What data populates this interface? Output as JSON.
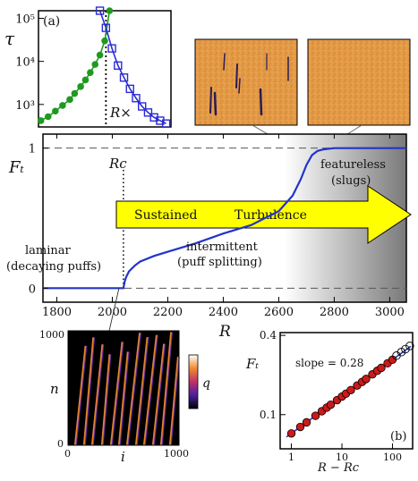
{
  "colors": {
    "green": "#1e9a1e",
    "blue": "#2b2bd6",
    "main_curve": "#2233cc",
    "arrow_fill": "#ffff00",
    "red_marker": "#cc1a1a",
    "open_marker": "#000000",
    "orange_bg": "#e39a45",
    "gray_region": "#7f7f7f"
  },
  "chart_data": [
    {
      "id": "a",
      "type": "scatter",
      "panel_label": "(a)",
      "ylabel": "τ",
      "yscale": "log",
      "ylim": [
        300,
        150000
      ],
      "yticks": [
        {
          "v": 1000,
          "label": "10³"
        },
        {
          "v": 10000,
          "label": "10⁴"
        },
        {
          "v": 100000,
          "label": "10⁵"
        }
      ],
      "xlim": [
        1760,
        2310
      ],
      "vline_label": "R×",
      "vline_x": 2040,
      "series": [
        {
          "marker": "circle",
          "color": "green",
          "x": [
            1770,
            1800,
            1830,
            1860,
            1890,
            1910,
            1935,
            1955,
            1975,
            1995,
            2015,
            2035,
            2055
          ],
          "y": [
            420,
            520,
            700,
            950,
            1300,
            1800,
            2600,
            3700,
            5500,
            8500,
            14000,
            30000,
            150000
          ]
        },
        {
          "marker": "square",
          "color": "blue",
          "x": [
            2015,
            2040,
            2065,
            2090,
            2115,
            2140,
            2165,
            2190,
            2215,
            2240,
            2265,
            2290
          ],
          "y": [
            150000,
            60000,
            20000,
            8000,
            4200,
            2300,
            1400,
            900,
            650,
            500,
            420,
            360
          ]
        }
      ]
    },
    {
      "id": "main",
      "type": "line",
      "ylabel": "Fₜ",
      "xlabel": "R",
      "xlim": [
        1750,
        3060
      ],
      "ylim": [
        -0.1,
        1.1
      ],
      "xticks": [
        1800,
        2000,
        2200,
        2400,
        2600,
        2800,
        3000
      ],
      "yticks": [
        0,
        1
      ],
      "Rc_label": "Rc",
      "Rc": 2040,
      "curve": {
        "x": [
          1750,
          2040,
          2045,
          2050,
          2060,
          2080,
          2100,
          2150,
          2200,
          2300,
          2400,
          2500,
          2600,
          2650,
          2680,
          2700,
          2720,
          2740,
          2760,
          2800,
          2900,
          3000,
          3060
        ],
        "y": [
          0,
          0,
          0.05,
          0.08,
          0.12,
          0.16,
          0.19,
          0.23,
          0.26,
          0.32,
          0.39,
          0.45,
          0.55,
          0.66,
          0.78,
          0.88,
          0.95,
          0.98,
          0.99,
          1.0,
          1.0,
          1.0,
          1.0
        ]
      },
      "arrow_text_1": "Sustained",
      "arrow_text_2": "Turbulence",
      "annotations": {
        "laminar": "laminar",
        "decaying": "(decaying puffs)",
        "intermittent": "intermittent",
        "puff_splitting": "(puff splitting)",
        "featureless": "featureless",
        "slugs": "(slugs)"
      }
    },
    {
      "id": "b",
      "type": "scatter",
      "panel_label": "(b)",
      "ylabel": "Fₜ",
      "xlabel": "R − Rc",
      "xscale": "log",
      "yscale": "log",
      "xlim": [
        0.6,
        250
      ],
      "ylim": [
        0.055,
        0.42
      ],
      "xticks": [
        1,
        10,
        100
      ],
      "yticks": [
        {
          "v": 0.1,
          "label": "0.1"
        },
        {
          "v": 0.4,
          "label": "0.4"
        }
      ],
      "slope_label": "slope = 0.28",
      "filled_x": [
        1,
        1.5,
        2,
        3,
        4,
        5,
        6,
        8,
        10,
        12,
        15,
        20,
        25,
        30,
        40,
        50,
        60,
        80,
        100
      ],
      "open_x": [
        120,
        150,
        180,
        220
      ],
      "slope": 0.28,
      "y_at_1": 0.072
    },
    {
      "id": "spacetime",
      "type": "heatmap",
      "ylabel": "n",
      "xlabel": "i",
      "colorbar_label": "q",
      "xlim": [
        0,
        1000
      ],
      "ylim": [
        0,
        1000
      ],
      "xticks": [
        0,
        1000
      ],
      "yticks": [
        0,
        1000
      ]
    }
  ]
}
